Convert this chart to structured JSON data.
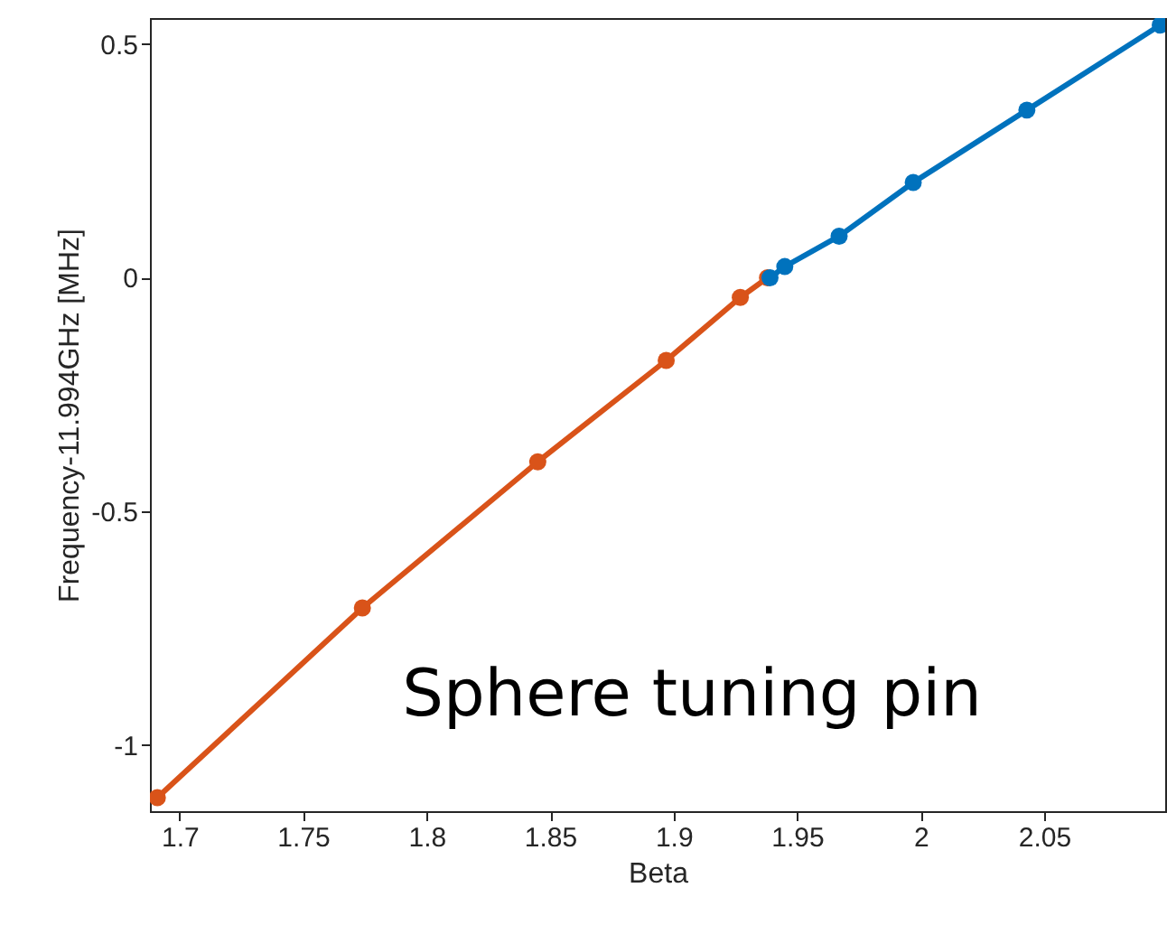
{
  "chart_data": {
    "type": "line",
    "xlabel": "Beta",
    "ylabel": "Frequency-11.994GHz [MHz]",
    "annotations": [
      "Sphere tuning pin"
    ],
    "series": [
      {
        "color": "#d95319",
        "x": [
          1.691,
          1.774,
          1.845,
          1.897,
          1.927,
          1.938
        ],
        "values": [
          -1.113,
          -0.707,
          -0.394,
          -0.177,
          -0.042,
          0
        ]
      },
      {
        "color": "#0072bd",
        "x": [
          1.939,
          1.945,
          1.967,
          1.997,
          2.043,
          2.097
        ],
        "values": [
          0,
          0.024,
          0.089,
          0.204,
          0.359,
          0.541
        ]
      }
    ],
    "xlim": [
      1.688,
      2.099
    ],
    "ylim": [
      -1.142,
      0.556
    ],
    "xticks": [
      1.7,
      1.75,
      1.8,
      1.85,
      1.9,
      1.95,
      2,
      2.05
    ],
    "yticks": [
      -1,
      -0.5,
      0,
      0.5
    ],
    "grid": false,
    "marker": "circle",
    "line_style": "solid"
  }
}
